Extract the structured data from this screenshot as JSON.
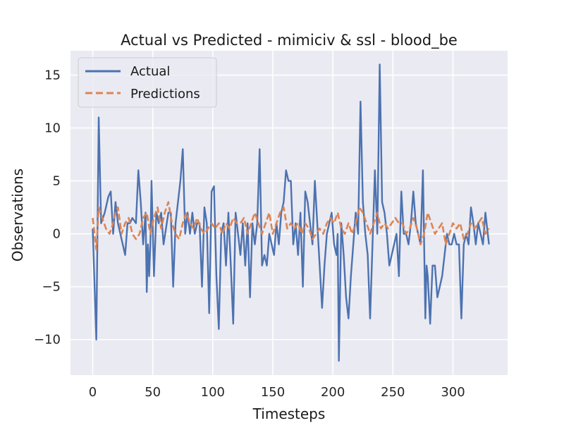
{
  "chart_data": {
    "type": "line",
    "title": "Actual vs Predicted - mimiciv & ssl - blood_be",
    "xlabel": "Timesteps",
    "ylabel": "Observations",
    "xlim": [
      -18.5,
      345.5
    ],
    "ylim": [
      -13.35,
      17.3
    ],
    "xticks": [
      0,
      50,
      100,
      150,
      200,
      250,
      300
    ],
    "yticks": [
      -10,
      -5,
      0,
      5,
      10,
      15
    ],
    "xtick_labels": [
      "0",
      "50",
      "100",
      "150",
      "200",
      "250",
      "300"
    ],
    "ytick_labels": [
      "−10",
      "−5",
      "0",
      "5",
      "10",
      "15"
    ],
    "grid": true,
    "legend": "upper-left",
    "series": [
      {
        "name": "Actual",
        "color": "#4c72b0",
        "style": "solid",
        "points": [
          [
            0,
            0.5
          ],
          [
            3,
            -10
          ],
          [
            5,
            11
          ],
          [
            7,
            1
          ],
          [
            10,
            2
          ],
          [
            13,
            3.5
          ],
          [
            15,
            4
          ],
          [
            17,
            0
          ],
          [
            19,
            3
          ],
          [
            21,
            1
          ],
          [
            23,
            0
          ],
          [
            25,
            -1
          ],
          [
            27,
            -2
          ],
          [
            29,
            1
          ],
          [
            31,
            1
          ],
          [
            33,
            1.5
          ],
          [
            36,
            1
          ],
          [
            38,
            6
          ],
          [
            40,
            3
          ],
          [
            42,
            -1
          ],
          [
            44,
            2
          ],
          [
            45,
            -5.5
          ],
          [
            46,
            -1
          ],
          [
            47,
            -4
          ],
          [
            48,
            -1
          ],
          [
            49,
            5
          ],
          [
            51,
            -4
          ],
          [
            53,
            2
          ],
          [
            55,
            1
          ],
          [
            57,
            2
          ],
          [
            59,
            -1
          ],
          [
            61,
            0.5
          ],
          [
            63,
            2
          ],
          [
            65,
            2
          ],
          [
            67,
            -5
          ],
          [
            69,
            1
          ],
          [
            71,
            3
          ],
          [
            73,
            5
          ],
          [
            75,
            8
          ],
          [
            77,
            0
          ],
          [
            79,
            2
          ],
          [
            81,
            0
          ],
          [
            83,
            2
          ],
          [
            85,
            0
          ],
          [
            87,
            1
          ],
          [
            89,
            1
          ],
          [
            91,
            -5
          ],
          [
            93,
            2.5
          ],
          [
            95,
            1
          ],
          [
            97,
            -7.5
          ],
          [
            99,
            4
          ],
          [
            101,
            4.5
          ],
          [
            103,
            -4
          ],
          [
            105,
            -9
          ],
          [
            107,
            0
          ],
          [
            109,
            1
          ],
          [
            111,
            -3
          ],
          [
            113,
            2
          ],
          [
            115,
            -3
          ],
          [
            117,
            -8.5
          ],
          [
            119,
            2
          ],
          [
            121,
            0
          ],
          [
            123,
            -2
          ],
          [
            125,
            1
          ],
          [
            127,
            -3
          ],
          [
            129,
            1
          ],
          [
            131,
            -6
          ],
          [
            133,
            1
          ],
          [
            135,
            -1
          ],
          [
            137,
            1
          ],
          [
            139,
            8
          ],
          [
            141,
            -3
          ],
          [
            143,
            -2
          ],
          [
            145,
            -3
          ],
          [
            147,
            0
          ],
          [
            149,
            -1
          ],
          [
            151,
            -2
          ],
          [
            153,
            1
          ],
          [
            155,
            -1
          ],
          [
            157,
            2
          ],
          [
            159,
            3
          ],
          [
            161,
            6
          ],
          [
            163,
            5
          ],
          [
            165,
            5
          ],
          [
            167,
            -1
          ],
          [
            169,
            1
          ],
          [
            171,
            -2
          ],
          [
            173,
            2
          ],
          [
            175,
            -5
          ],
          [
            177,
            4
          ],
          [
            179,
            3
          ],
          [
            181,
            1
          ],
          [
            183,
            -1
          ],
          [
            185,
            5
          ],
          [
            187,
            1
          ],
          [
            189,
            -3
          ],
          [
            191,
            -7
          ],
          [
            193,
            -3
          ],
          [
            195,
            0
          ],
          [
            197,
            1
          ],
          [
            199,
            2
          ],
          [
            201,
            -1
          ],
          [
            203,
            -2
          ],
          [
            204,
            0
          ],
          [
            205,
            -12
          ],
          [
            207,
            1
          ],
          [
            209,
            -2
          ],
          [
            211,
            -6
          ],
          [
            213,
            -8
          ],
          [
            215,
            -4
          ],
          [
            217,
            -1
          ],
          [
            219,
            2
          ],
          [
            221,
            0
          ],
          [
            223,
            12.5
          ],
          [
            225,
            3
          ],
          [
            227,
            0
          ],
          [
            229,
            -2
          ],
          [
            231,
            -8
          ],
          [
            233,
            -1
          ],
          [
            235,
            6
          ],
          [
            237,
            0
          ],
          [
            239,
            16
          ],
          [
            241,
            3
          ],
          [
            243,
            2
          ],
          [
            245,
            0
          ],
          [
            247,
            -3
          ],
          [
            249,
            -2
          ],
          [
            251,
            -1
          ],
          [
            253,
            0
          ],
          [
            255,
            -4
          ],
          [
            257,
            4
          ],
          [
            259,
            0
          ],
          [
            261,
            0
          ],
          [
            263,
            -1
          ],
          [
            265,
            1
          ],
          [
            267,
            4
          ],
          [
            269,
            1
          ],
          [
            271,
            0
          ],
          [
            273,
            -1
          ],
          [
            275,
            6
          ],
          [
            277,
            -8
          ],
          [
            278,
            -3
          ],
          [
            279,
            -4
          ],
          [
            281,
            -8.5
          ],
          [
            283,
            -3
          ],
          [
            285,
            -3
          ],
          [
            287,
            -6
          ],
          [
            289,
            -5
          ],
          [
            291,
            -4
          ],
          [
            293,
            -2
          ],
          [
            295,
            0
          ],
          [
            297,
            -1
          ],
          [
            299,
            -1
          ],
          [
            301,
            0
          ],
          [
            303,
            -1
          ],
          [
            305,
            -1
          ],
          [
            307,
            -8
          ],
          [
            309,
            -1
          ],
          [
            311,
            0
          ],
          [
            313,
            -1
          ],
          [
            315,
            2.5
          ],
          [
            317,
            1
          ],
          [
            319,
            -1
          ],
          [
            321,
            1
          ],
          [
            323,
            0
          ],
          [
            325,
            -1
          ],
          [
            327,
            2
          ],
          [
            329,
            0
          ],
          [
            330,
            -1
          ]
        ]
      },
      {
        "name": "Predictions",
        "color": "#dd8452",
        "style": "dashed",
        "points": [
          [
            0,
            1.5
          ],
          [
            3,
            -1.5
          ],
          [
            5,
            2.5
          ],
          [
            8,
            1.5
          ],
          [
            11,
            0.5
          ],
          [
            14,
            0
          ],
          [
            17,
            1
          ],
          [
            19,
            2
          ],
          [
            21,
            2.5
          ],
          [
            24,
            0
          ],
          [
            27,
            1
          ],
          [
            30,
            1.5
          ],
          [
            33,
            0
          ],
          [
            36,
            -0.5
          ],
          [
            39,
            0
          ],
          [
            42,
            1.5
          ],
          [
            45,
            2
          ],
          [
            48,
            0
          ],
          [
            51,
            1.5
          ],
          [
            54,
            2.5
          ],
          [
            57,
            0.5
          ],
          [
            60,
            2
          ],
          [
            63,
            3
          ],
          [
            66,
            1
          ],
          [
            69,
            0
          ],
          [
            72,
            -0.5
          ],
          [
            75,
            1
          ],
          [
            78,
            2
          ],
          [
            81,
            1
          ],
          [
            84,
            0.5
          ],
          [
            87,
            1.5
          ],
          [
            90,
            0.5
          ],
          [
            93,
            0
          ],
          [
            96,
            0.5
          ],
          [
            99,
            1
          ],
          [
            102,
            0.5
          ],
          [
            105,
            1
          ],
          [
            108,
            0
          ],
          [
            111,
            1
          ],
          [
            114,
            0.5
          ],
          [
            117,
            1.5
          ],
          [
            120,
            1
          ],
          [
            123,
            1
          ],
          [
            126,
            1.5
          ],
          [
            129,
            0
          ],
          [
            132,
            1
          ],
          [
            135,
            2
          ],
          [
            138,
            1
          ],
          [
            141,
            0
          ],
          [
            144,
            1
          ],
          [
            147,
            2
          ],
          [
            150,
            0
          ],
          [
            153,
            1
          ],
          [
            156,
            2
          ],
          [
            159,
            2.5
          ],
          [
            162,
            0.5
          ],
          [
            165,
            1
          ],
          [
            168,
            0.5
          ],
          [
            171,
            1
          ],
          [
            174,
            0
          ],
          [
            177,
            1
          ],
          [
            180,
            0.5
          ],
          [
            183,
            -0.5
          ],
          [
            186,
            0
          ],
          [
            189,
            0.5
          ],
          [
            192,
            0
          ],
          [
            195,
            1
          ],
          [
            198,
            1.5
          ],
          [
            201,
            1
          ],
          [
            204,
            2
          ],
          [
            207,
            0.5
          ],
          [
            210,
            0
          ],
          [
            213,
            1
          ],
          [
            216,
            0
          ],
          [
            219,
            1
          ],
          [
            222,
            2.5
          ],
          [
            225,
            2
          ],
          [
            228,
            1
          ],
          [
            231,
            0
          ],
          [
            234,
            1
          ],
          [
            237,
            2
          ],
          [
            240,
            0.5
          ],
          [
            243,
            1
          ],
          [
            246,
            0.5
          ],
          [
            249,
            1
          ],
          [
            252,
            1.5
          ],
          [
            255,
            1
          ],
          [
            258,
            1
          ],
          [
            261,
            0
          ],
          [
            264,
            0.5
          ],
          [
            267,
            1.5
          ],
          [
            270,
            0.5
          ],
          [
            273,
            -1
          ],
          [
            276,
            0
          ],
          [
            279,
            2
          ],
          [
            282,
            1
          ],
          [
            285,
            0
          ],
          [
            288,
            0.5
          ],
          [
            291,
            1
          ],
          [
            294,
            -1
          ],
          [
            297,
            0
          ],
          [
            300,
            1
          ],
          [
            303,
            0.5
          ],
          [
            306,
            1
          ],
          [
            309,
            -0.5
          ],
          [
            312,
            0
          ],
          [
            315,
            1
          ],
          [
            318,
            0.5
          ],
          [
            321,
            1
          ],
          [
            324,
            1.5
          ],
          [
            327,
            0
          ],
          [
            330,
            0.5
          ]
        ]
      }
    ]
  }
}
